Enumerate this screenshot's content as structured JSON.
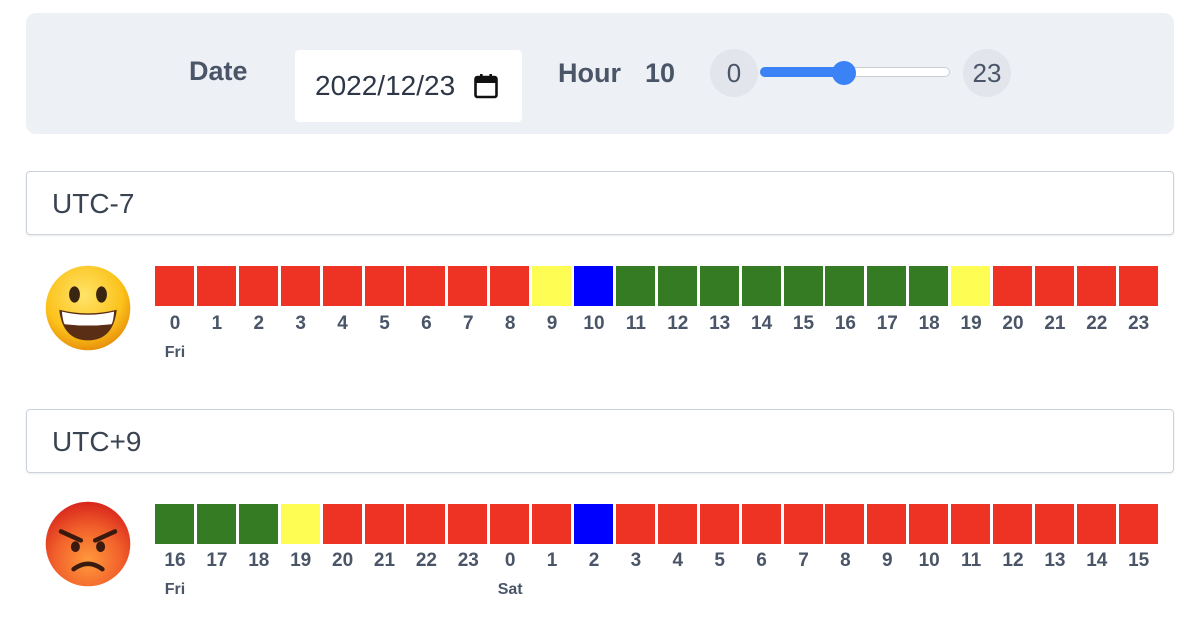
{
  "controls": {
    "date_label": "Date",
    "date_value": "2022/12/23",
    "hour_label": "Hour",
    "hour_value": "10",
    "slider_min": "0",
    "slider_max": "23",
    "slider_value": 10
  },
  "colors": {
    "red": "#ee3224",
    "green": "#347b24",
    "yellow": "#fdfd54",
    "blue": "#0000fe",
    "accent": "#3b82f6"
  },
  "timezones": [
    {
      "name": "UTC-7",
      "emoji": "grinning-face",
      "hours": [
        "0",
        "1",
        "2",
        "3",
        "4",
        "5",
        "6",
        "7",
        "8",
        "9",
        "10",
        "11",
        "12",
        "13",
        "14",
        "15",
        "16",
        "17",
        "18",
        "19",
        "20",
        "21",
        "22",
        "23"
      ],
      "cells": [
        "red",
        "red",
        "red",
        "red",
        "red",
        "red",
        "red",
        "red",
        "red",
        "yellow",
        "blue",
        "green",
        "green",
        "green",
        "green",
        "green",
        "green",
        "green",
        "green",
        "yellow",
        "red",
        "red",
        "red",
        "red"
      ],
      "day_labels": [
        {
          "index": 0,
          "text": "Fri"
        }
      ]
    },
    {
      "name": "UTC+9",
      "emoji": "angry-face",
      "hours": [
        "16",
        "17",
        "18",
        "19",
        "20",
        "21",
        "22",
        "23",
        "0",
        "1",
        "2",
        "3",
        "4",
        "5",
        "6",
        "7",
        "8",
        "9",
        "10",
        "11",
        "12",
        "13",
        "14",
        "15"
      ],
      "cells": [
        "green",
        "green",
        "green",
        "yellow",
        "red",
        "red",
        "red",
        "red",
        "red",
        "red",
        "blue",
        "red",
        "red",
        "red",
        "red",
        "red",
        "red",
        "red",
        "red",
        "red",
        "red",
        "red",
        "red",
        "red"
      ],
      "day_labels": [
        {
          "index": 0,
          "text": "Fri"
        },
        {
          "index": 8,
          "text": "Sat"
        }
      ]
    }
  ]
}
